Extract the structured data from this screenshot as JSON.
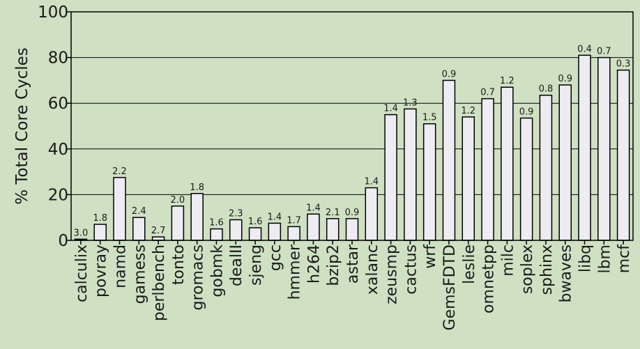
{
  "colors": {
    "background": "#cfe0c3",
    "bar_fill": "#ececf2",
    "bar_stroke": "#000000",
    "grid": "#000000"
  },
  "chart_data": {
    "type": "bar",
    "title": "",
    "xlabel": "",
    "ylabel": "% Total Core Cycles",
    "ylim": [
      0,
      100
    ],
    "yticks": [
      0,
      20,
      40,
      60,
      80,
      100
    ],
    "grid": true,
    "categories": [
      "calculix",
      "povray",
      "namd",
      "gamess",
      "perlbench",
      "tonto",
      "gromacs",
      "gobmk",
      "dealII",
      "sjeng",
      "gcc",
      "hmmer",
      "h264",
      "bzip2",
      "astar",
      "xalanc",
      "zeusmp",
      "cactus",
      "wrf",
      "GemsFDTD",
      "leslie",
      "omnetpp",
      "milc",
      "soplex",
      "sphinx",
      "bwaves",
      "libq",
      "lbm",
      "mcf"
    ],
    "values": [
      0.5,
      7,
      27.5,
      10,
      1.5,
      15,
      20.5,
      5,
      9,
      5.5,
      7.5,
      6,
      11.5,
      9.5,
      9.5,
      23,
      55,
      57.5,
      51,
      70,
      54,
      62,
      67,
      53.5,
      63.5,
      68,
      81,
      80,
      74.5
    ],
    "data_labels": [
      "3.0",
      "1.8",
      "2.2",
      "2.4",
      "2.7",
      "2.0",
      "1.8",
      "1.6",
      "2.3",
      "1.6",
      "1.4",
      "1.7",
      "1.4",
      "2.1",
      "0.9",
      "1.4",
      "1.4",
      "1.3",
      "1.5",
      "0.9",
      "1.2",
      "0.7",
      "1.2",
      "0.9",
      "0.8",
      "0.9",
      "0.4",
      "0.7",
      "0.3"
    ]
  }
}
